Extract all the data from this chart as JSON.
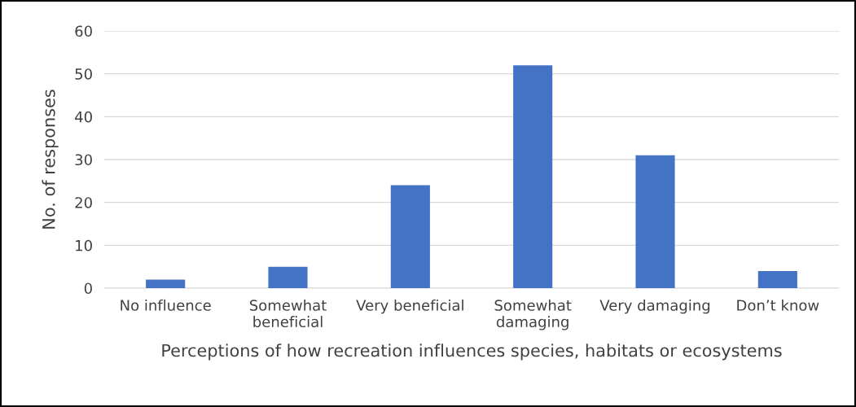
{
  "chart_data": {
    "type": "bar",
    "xlabel": "Perceptions of how recreation influences species, habitats or ecosystems",
    "ylabel": "No. of responses",
    "categories": [
      "No influence",
      "Somewhat\nbeneficial",
      "Very beneficial",
      "Somewhat\ndamaging",
      "Very damaging",
      "Don’t know"
    ],
    "values": [
      2,
      5,
      24,
      52,
      31,
      4
    ],
    "color": "#4472c4",
    "ylim": [
      0,
      60
    ],
    "yticks": [
      0,
      10,
      20,
      30,
      40,
      50,
      60
    ],
    "grid": "y"
  }
}
